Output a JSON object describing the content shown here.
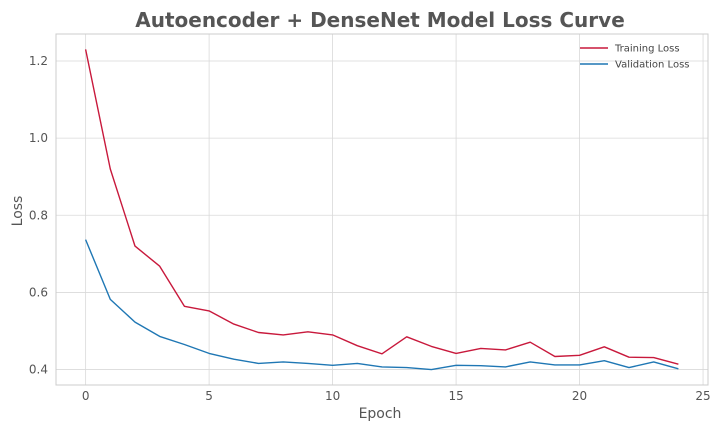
{
  "chart_data": {
    "type": "line",
    "title": "Autoencoder + DenseNet Model Loss Curve",
    "xlabel": "Epoch",
    "ylabel": "Loss",
    "xlim": [
      -1.2,
      25.2
    ],
    "ylim": [
      0.36,
      1.27
    ],
    "xticks": [
      0,
      5,
      10,
      15,
      20,
      25
    ],
    "yticks": [
      0.4,
      0.6,
      0.8,
      1.0,
      1.2
    ],
    "xtick_labels": [
      "0",
      "5",
      "10",
      "15",
      "20",
      "25"
    ],
    "ytick_labels": [
      "0.4",
      "0.6",
      "0.8",
      "1.0",
      "1.2"
    ],
    "grid": true,
    "legend_position": "top-right",
    "x": [
      0,
      1,
      2,
      3,
      4,
      5,
      6,
      7,
      8,
      9,
      10,
      11,
      12,
      13,
      14,
      15,
      16,
      17,
      18,
      19,
      20,
      21,
      22,
      23,
      24
    ],
    "series": [
      {
        "name": "Training Loss",
        "color": "#c8193c",
        "values": [
          1.23,
          0.92,
          0.72,
          0.668,
          0.564,
          0.552,
          0.518,
          0.496,
          0.49,
          0.498,
          0.49,
          0.462,
          0.441,
          0.485,
          0.46,
          0.442,
          0.455,
          0.451,
          0.471,
          0.434,
          0.437,
          0.459,
          0.432,
          0.431,
          0.414
        ]
      },
      {
        "name": "Validation Loss",
        "color": "#1f77b4",
        "values": [
          0.737,
          0.582,
          0.523,
          0.486,
          0.465,
          0.442,
          0.427,
          0.416,
          0.42,
          0.416,
          0.411,
          0.416,
          0.407,
          0.405,
          0.4,
          0.411,
          0.41,
          0.407,
          0.42,
          0.412,
          0.412,
          0.423,
          0.405,
          0.42,
          0.402
        ]
      }
    ]
  }
}
